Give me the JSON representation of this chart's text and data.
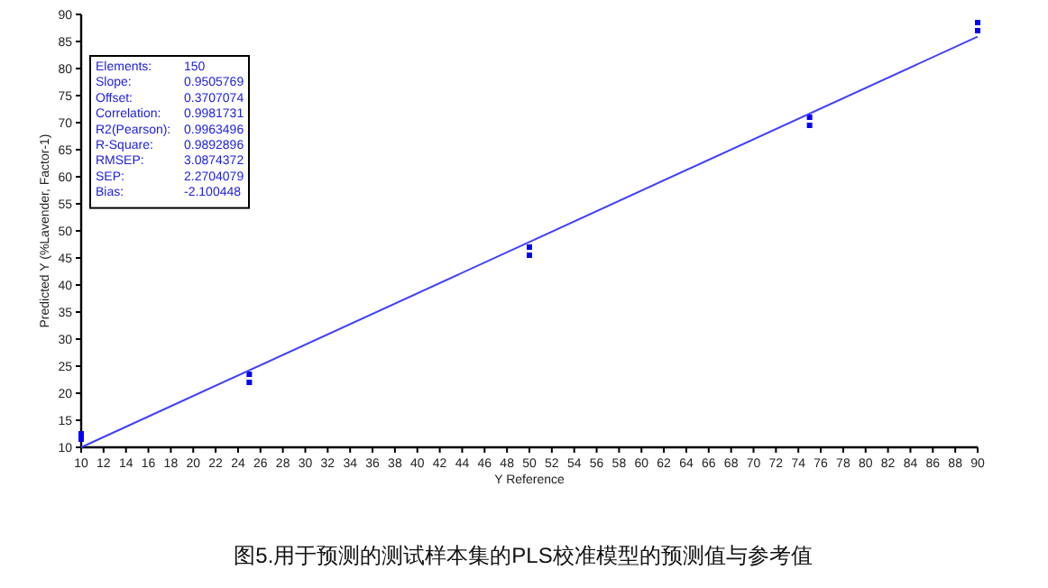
{
  "chart_data": {
    "type": "scatter",
    "title": "图5.用于预测的测试样本集的PLS校准模型的预测值与参考值",
    "xlabel": "Y Reference",
    "ylabel": "Predicted Y (%Lavender, Factor-1)",
    "annotations": [
      "Elements:",
      "150",
      "Slope:",
      "0.9505769",
      "Offset:",
      "0.3707074",
      "Correlation:",
      "0.9981731",
      "R2(Pearson):",
      "0.9963496",
      "R-Square:",
      "0.9892896",
      "RMSEP:",
      "3.0874372",
      "SEP:",
      "2.2704079",
      "Bias:",
      "-2.100448"
    ],
    "xlim": [
      10,
      90
    ],
    "ylim": [
      10,
      90
    ],
    "xticks": [
      10,
      12,
      14,
      16,
      18,
      20,
      22,
      24,
      26,
      28,
      30,
      32,
      34,
      36,
      38,
      40,
      42,
      44,
      46,
      48,
      50,
      52,
      54,
      56,
      58,
      60,
      62,
      64,
      66,
      68,
      70,
      72,
      74,
      76,
      78,
      80,
      82,
      84,
      86,
      88,
      90
    ],
    "yticks": [
      10,
      15,
      20,
      25,
      30,
      35,
      40,
      45,
      50,
      55,
      60,
      65,
      70,
      75,
      80,
      85,
      90
    ],
    "series": [
      {
        "marker": "square",
        "color": "#0000ff",
        "x": [
          10,
          10,
          25,
          25,
          50,
          50,
          75,
          75,
          90,
          90
        ],
        "values": [
          11.5,
          12.5,
          22.0,
          23.5,
          45.5,
          47.0,
          69.5,
          71.0,
          87.0,
          88.5
        ]
      },
      {
        "type": "line",
        "marker": "none",
        "color": "#4040ff",
        "line_style": "solid",
        "x": [
          10,
          90
        ],
        "values": [
          10,
          85.9
        ]
      }
    ]
  }
}
